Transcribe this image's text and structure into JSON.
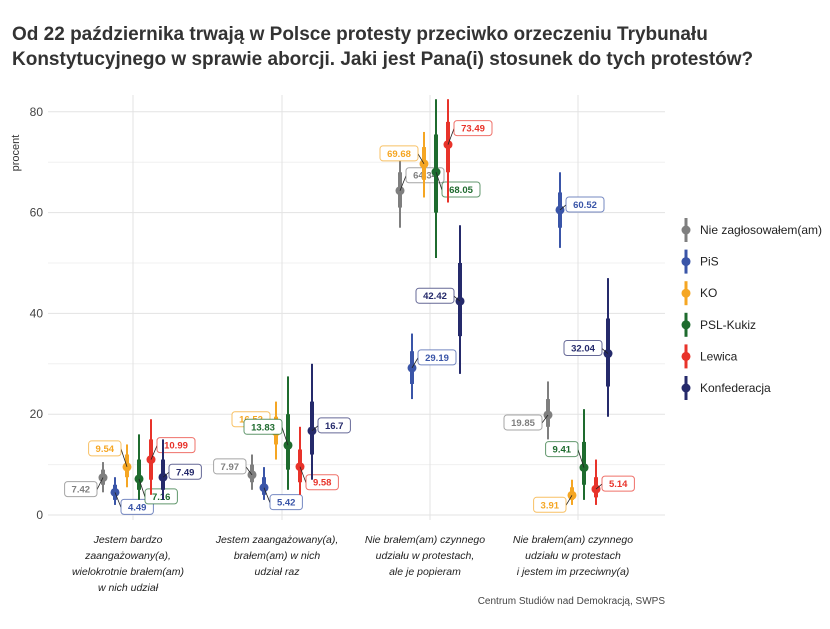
{
  "chart_data": {
    "type": "scatter",
    "title": "Od 22 października trwają w Polsce protesty przeciwko orzeczeniu Trybunału Konstytucyjnego w sprawie aborcji. Jaki jest Pana(i) stosunek do tych protestów?",
    "xlabel": "",
    "ylabel": "procent",
    "ylim": [
      0,
      85
    ],
    "yticks": [
      0,
      20,
      40,
      60,
      80
    ],
    "grid": true,
    "legend_position": "right",
    "source": "Centrum Studiów nad Demokracją, SWPS",
    "categories": [
      [
        "Jestem bardzo",
        "zaangażowany(a),",
        "wielokrotnie brałem(am)",
        "w nich udział"
      ],
      [
        "Jestem zaangażowany(a),",
        "brałem(am) w nich",
        "udział raz"
      ],
      [
        "Nie brałem(am) czynnego",
        "udziału w protestach,",
        "ale je popieram"
      ],
      [
        "Nie brałem(am) czynnego",
        "udziału w protestach",
        "i jestem im przeciwny(a)"
      ]
    ],
    "series": [
      {
        "name": "Nie zagłosowałem(am)",
        "color": "#7f7f7f",
        "values": [
          7.42,
          7.97,
          64.34,
          19.85
        ],
        "labels": [
          "7.42",
          "7.97",
          "64.34",
          "19.85"
        ],
        "ci95": [
          [
            4.5,
            10.5
          ],
          [
            5,
            12
          ],
          [
            57,
            70.5
          ],
          [
            15,
            26.5
          ]
        ],
        "ci50": [
          [
            6,
            9
          ],
          [
            6.5,
            10
          ],
          [
            61,
            68
          ],
          [
            17.5,
            23
          ]
        ]
      },
      {
        "name": "PiS",
        "color": "#3a55a8",
        "values": [
          4.49,
          5.42,
          29.19,
          60.52
        ],
        "labels": [
          "4.49",
          "5.42",
          "29.19",
          "60.52"
        ],
        "ci95": [
          [
            2,
            7.5
          ],
          [
            3,
            9.5
          ],
          [
            23,
            36
          ],
          [
            53,
            68
          ]
        ],
        "ci50": [
          [
            3,
            6
          ],
          [
            4,
            7.5
          ],
          [
            26,
            32.5
          ],
          [
            57,
            64
          ]
        ]
      },
      {
        "name": "KO",
        "color": "#f5a623",
        "values": [
          9.54,
          16.52,
          69.68,
          3.91
        ],
        "labels": [
          "9.54",
          "16.52",
          "69.68",
          "3.91"
        ],
        "ci95": [
          [
            5.5,
            14
          ],
          [
            11,
            22.5
          ],
          [
            63,
            76
          ],
          [
            2,
            7
          ]
        ],
        "ci50": [
          [
            7.5,
            12
          ],
          [
            14,
            19.5
          ],
          [
            66.5,
            73
          ],
          [
            3,
            5.5
          ]
        ]
      },
      {
        "name": "PSL-Kukiz",
        "color": "#1e6b2e",
        "values": [
          7.16,
          13.83,
          68.05,
          9.41
        ],
        "labels": [
          "7.16",
          "13.83",
          "68.05",
          "9.41"
        ],
        "ci95": [
          [
            3,
            16
          ],
          [
            5,
            27.5
          ],
          [
            51,
            82.5
          ],
          [
            3,
            21
          ]
        ],
        "ci50": [
          [
            5,
            11
          ],
          [
            9,
            20
          ],
          [
            60,
            75.5
          ],
          [
            6,
            14.5
          ]
        ]
      },
      {
        "name": "Lewica",
        "color": "#e8332a",
        "values": [
          10.99,
          9.58,
          73.49,
          5.14
        ],
        "labels": [
          "10.99",
          "9.58",
          "73.49",
          "5.14"
        ],
        "ci95": [
          [
            4,
            19
          ],
          [
            4,
            17.5
          ],
          [
            62,
            82.5
          ],
          [
            2,
            11
          ]
        ],
        "ci50": [
          [
            7,
            15
          ],
          [
            6.5,
            13
          ],
          [
            68,
            78
          ],
          [
            3.5,
            7.5
          ]
        ]
      },
      {
        "name": "Konfederacja",
        "color": "#252a6b",
        "values": [
          7.49,
          16.7,
          42.42,
          32.04
        ],
        "labels": [
          "7.49",
          "16.7",
          "42.42",
          "32.04"
        ],
        "ci95": [
          [
            3,
            15
          ],
          [
            7,
            30
          ],
          [
            28,
            57.5
          ],
          [
            19.5,
            47
          ]
        ],
        "ci50": [
          [
            5,
            11
          ],
          [
            12,
            22.5
          ],
          [
            35.5,
            50
          ],
          [
            25.5,
            39
          ]
        ]
      }
    ]
  }
}
